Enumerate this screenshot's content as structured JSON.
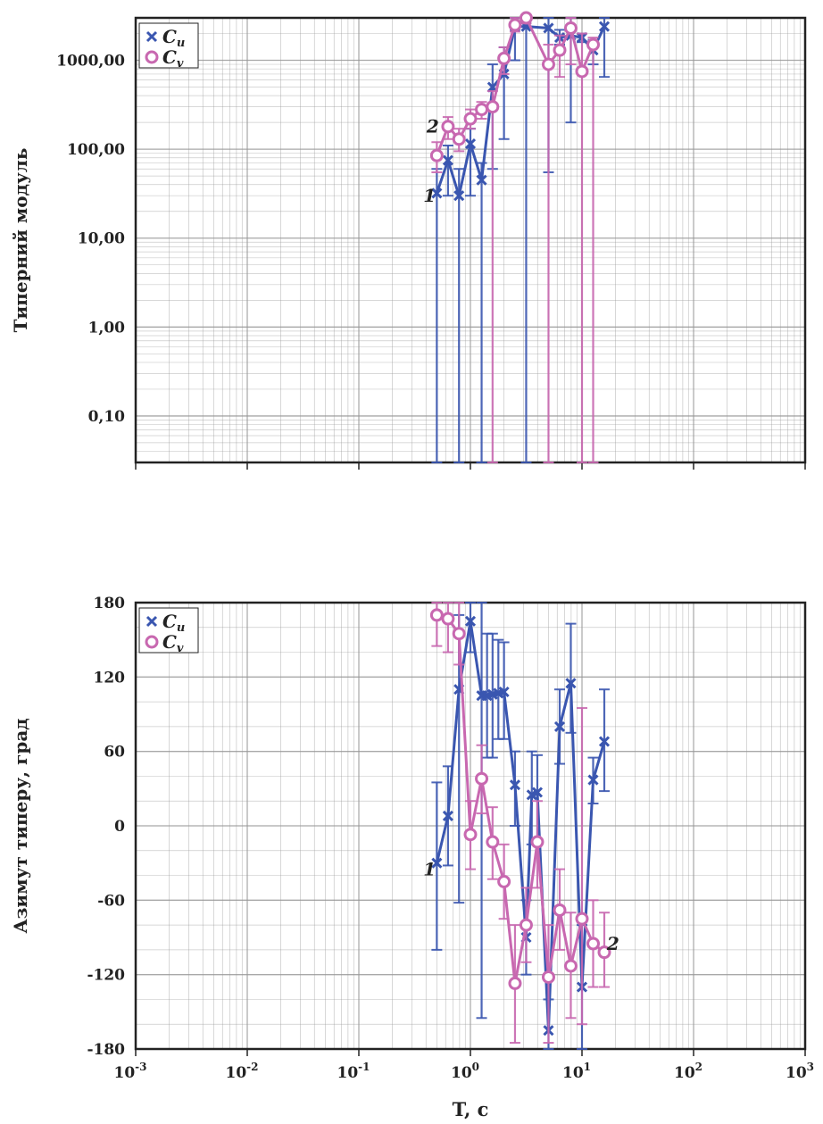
{
  "colors": {
    "Cu": "#3a56b0",
    "Cv": "#c868b0",
    "axis": "#222222",
    "grid": "#999999"
  },
  "chart_data": [
    {
      "type": "line",
      "ylabel": "Типерний модуль",
      "xscale": "log",
      "yscale": "log",
      "xlim": [
        0.001,
        1000
      ],
      "ylim": [
        0.03,
        3000
      ],
      "yticks": [
        0.1,
        1,
        10,
        100,
        1000
      ],
      "ytick_labels": [
        "0,10",
        "1,00",
        "10,00",
        "100,00",
        "1000,00"
      ],
      "grid": true,
      "legend": {
        "position": "top-left",
        "entries": [
          "C_u",
          "C_v"
        ]
      },
      "annotations": [
        {
          "text": "1",
          "x": 0.43,
          "y": 30
        },
        {
          "text": "2",
          "x": 0.46,
          "y": 180
        }
      ],
      "series": [
        {
          "name": "C_u",
          "marker": "x",
          "x": [
            0.5,
            0.63,
            0.79,
            1.0,
            1.26,
            1.58,
            2.0,
            2.51,
            3.16,
            5.01,
            6.31,
            7.94,
            10.0,
            12.59,
            15.85
          ],
          "y": [
            32,
            75,
            30,
            115,
            45,
            500,
            700,
            2400,
            2400,
            2300,
            1800,
            1900,
            1800,
            1300,
            2400
          ],
          "err_low": [
            0.03,
            30,
            0.03,
            30,
            0.03,
            60,
            130,
            1000,
            0.03,
            55,
            1500,
            200,
            1600,
            900,
            650
          ],
          "err_high": [
            60,
            110,
            60,
            170,
            70,
            900,
            1400,
            3000,
            3000,
            3000,
            2200,
            3000,
            2000,
            1700,
            3000
          ]
        },
        {
          "name": "C_v",
          "marker": "o",
          "x": [
            0.5,
            0.63,
            0.79,
            1.0,
            1.26,
            1.58,
            2.0,
            2.51,
            3.16,
            5.01,
            6.31,
            7.94,
            10.0,
            12.59
          ],
          "y": [
            85,
            180,
            130,
            220,
            280,
            300,
            1050,
            2500,
            3000,
            900,
            1300,
            2300,
            750,
            1500
          ],
          "err_low": [
            55,
            130,
            95,
            170,
            220,
            0.03,
            700,
            2100,
            2600,
            0.03,
            650,
            900,
            0.03,
            0.03
          ],
          "err_high": [
            120,
            230,
            170,
            280,
            340,
            450,
            1400,
            3000,
            3000,
            1500,
            1900,
            3000,
            2000,
            1800
          ]
        }
      ]
    },
    {
      "type": "line",
      "xlabel": "T, c",
      "ylabel": "Азимут типеру, град",
      "xscale": "log",
      "xlim": [
        0.001,
        1000
      ],
      "ylim": [
        -180,
        180
      ],
      "xticks": [
        0.001,
        0.01,
        0.1,
        1,
        10,
        100,
        1000
      ],
      "xtick_labels": [
        "10",
        "10",
        "10",
        "10",
        "10",
        "10",
        "10"
      ],
      "xtick_exponents": [
        "-3",
        "-2",
        "-1",
        "0",
        "1",
        "2",
        "3"
      ],
      "yticks": [
        -180,
        -120,
        -60,
        0,
        60,
        120,
        180
      ],
      "ytick_labels": [
        "-180",
        "-120",
        "-60",
        "0",
        "60",
        "120",
        "180"
      ],
      "grid": true,
      "legend": {
        "position": "top-left",
        "entries": [
          "C_u",
          "C_v"
        ]
      },
      "annotations": [
        {
          "text": "1",
          "x": 0.43,
          "y": -35
        },
        {
          "text": "2",
          "x": 19,
          "y": -95
        }
      ],
      "series": [
        {
          "name": "C_u",
          "marker": "x",
          "x": [
            0.5,
            0.63,
            0.79,
            1.0,
            1.26,
            1.41,
            1.58,
            1.78,
            2.0,
            2.51,
            3.16,
            3.55,
            3.98,
            5.01,
            6.31,
            7.94,
            10.0,
            12.59,
            15.85
          ],
          "y": [
            -30,
            8,
            110,
            165,
            105,
            105,
            106,
            107,
            108,
            33,
            -90,
            25,
            27,
            -165,
            80,
            115,
            -130,
            37,
            68
          ],
          "err_low": [
            -100,
            -32,
            -62,
            140,
            -155,
            55,
            55,
            70,
            70,
            0,
            -120,
            -15,
            -15,
            -180,
            50,
            75,
            -180,
            18,
            28
          ],
          "err_high": [
            35,
            48,
            170,
            180,
            180,
            155,
            155,
            150,
            148,
            60,
            -60,
            60,
            57,
            -140,
            110,
            163,
            -80,
            55,
            110
          ]
        },
        {
          "name": "C_v",
          "marker": "o",
          "x": [
            0.5,
            0.63,
            0.79,
            1.0,
            1.26,
            1.58,
            2.0,
            2.51,
            3.16,
            3.98,
            5.01,
            6.31,
            7.94,
            10.0,
            12.59,
            15.85
          ],
          "y": [
            170,
            167,
            155,
            -7,
            38,
            -13,
            -45,
            -127,
            -80,
            -13,
            -122,
            -68,
            -113,
            -75,
            -95,
            -102
          ],
          "err_low": [
            145,
            140,
            130,
            -35,
            10,
            -43,
            -75,
            -175,
            -110,
            -50,
            -175,
            -100,
            -155,
            -160,
            -130,
            -130
          ],
          "err_high": [
            180,
            180,
            180,
            20,
            65,
            15,
            -15,
            -80,
            -50,
            20,
            -80,
            -35,
            -70,
            95,
            -60,
            -70
          ]
        }
      ]
    }
  ]
}
